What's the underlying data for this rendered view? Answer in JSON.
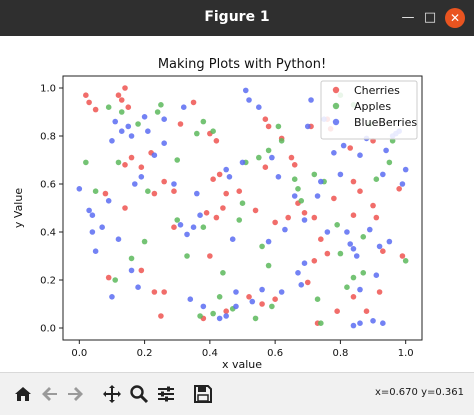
{
  "window": {
    "title": "Figure 1",
    "minimize": "—",
    "maximize": "□",
    "close": "✕"
  },
  "toolbar": {
    "buttons": [
      {
        "name": "home-icon"
      },
      {
        "name": "back-arrow-icon"
      },
      {
        "name": "forward-arrow-icon"
      },
      {
        "name": "pan-icon"
      },
      {
        "name": "zoom-icon"
      },
      {
        "name": "configure-subplots-icon"
      },
      {
        "name": "save-icon"
      }
    ],
    "coords": "x=0.670 y=0.361"
  },
  "chart_data": {
    "type": "scatter",
    "title": "Making Plots with Python!",
    "xlabel": "x value",
    "ylabel": "y Value",
    "xlim": [
      -0.05,
      1.05
    ],
    "ylim": [
      -0.05,
      1.05
    ],
    "xticks": [
      "0.0",
      "0.2",
      "0.4",
      "0.6",
      "0.8",
      "1.0"
    ],
    "yticks": [
      "0.0",
      "0.2",
      "0.4",
      "0.6",
      "0.8",
      "1.0"
    ],
    "legend_position": "top-right",
    "series": [
      {
        "name": "Cherries",
        "color": "#ef5350",
        "points": [
          [
            0.02,
            0.97
          ],
          [
            0.03,
            0.94
          ],
          [
            0.05,
            0.91
          ],
          [
            0.14,
            1.0
          ],
          [
            0.13,
            0.95
          ],
          [
            0.15,
            0.92
          ],
          [
            0.12,
            0.97
          ],
          [
            0.16,
            0.71
          ],
          [
            0.19,
            0.67
          ],
          [
            0.22,
            0.73
          ],
          [
            0.23,
            0.56
          ],
          [
            0.26,
            0.61
          ],
          [
            0.29,
            0.57
          ],
          [
            0.14,
            0.68
          ],
          [
            0.08,
            0.56
          ],
          [
            0.09,
            0.21
          ],
          [
            0.14,
            0.5
          ],
          [
            0.31,
            0.85
          ],
          [
            0.35,
            0.94
          ],
          [
            0.41,
            0.62
          ],
          [
            0.43,
            0.64
          ],
          [
            0.42,
            0.78
          ],
          [
            0.4,
            0.81
          ],
          [
            0.44,
            0.5
          ],
          [
            0.39,
            0.48
          ],
          [
            0.42,
            0.46
          ],
          [
            0.45,
            0.56
          ],
          [
            0.49,
            0.57
          ],
          [
            0.4,
            0.3
          ],
          [
            0.29,
            0.42
          ],
          [
            0.23,
            0.15
          ],
          [
            0.26,
            0.15
          ],
          [
            0.25,
            0.05
          ],
          [
            0.19,
            0.24
          ],
          [
            0.57,
            0.87
          ],
          [
            0.58,
            0.84
          ],
          [
            0.62,
            0.79
          ],
          [
            0.65,
            0.71
          ],
          [
            0.66,
            0.68
          ],
          [
            0.57,
            0.67
          ],
          [
            0.54,
            0.49
          ],
          [
            0.6,
            0.44
          ],
          [
            0.64,
            0.46
          ],
          [
            0.69,
            0.48
          ],
          [
            0.67,
            0.52
          ],
          [
            0.74,
            0.37
          ],
          [
            0.76,
            0.31
          ],
          [
            0.72,
            0.46
          ],
          [
            0.78,
            0.54
          ],
          [
            0.83,
            0.75
          ],
          [
            0.84,
            0.61
          ],
          [
            0.86,
            0.57
          ],
          [
            0.84,
            0.47
          ],
          [
            0.9,
            0.51
          ],
          [
            0.91,
            0.46
          ],
          [
            0.93,
            0.32
          ],
          [
            0.99,
            0.3
          ],
          [
            0.98,
            0.58
          ],
          [
            0.9,
            0.78
          ],
          [
            0.77,
            0.83
          ],
          [
            0.76,
            0.87
          ],
          [
            0.71,
            0.84
          ],
          [
            0.6,
            0.12
          ],
          [
            0.56,
            0.1
          ],
          [
            0.52,
            0.13
          ],
          [
            0.38,
            0.04
          ],
          [
            0.45,
            0.07
          ],
          [
            0.73,
            0.02
          ],
          [
            0.79,
            0.07
          ],
          [
            0.84,
            0.13
          ],
          [
            0.88,
            0.07
          ],
          [
            0.92,
            0.15
          ],
          [
            0.7,
            0.19
          ],
          [
            0.72,
            0.28
          ]
        ]
      },
      {
        "name": "Apples",
        "color": "#5cb85c",
        "points": [
          [
            0.02,
            0.69
          ],
          [
            0.05,
            0.57
          ],
          [
            0.09,
            0.92
          ],
          [
            0.12,
            0.69
          ],
          [
            0.13,
            0.9
          ],
          [
            0.18,
            0.85
          ],
          [
            0.21,
            0.57
          ],
          [
            0.24,
            0.9
          ],
          [
            0.25,
            0.93
          ],
          [
            0.2,
            0.36
          ],
          [
            0.16,
            0.29
          ],
          [
            0.11,
            0.2
          ],
          [
            0.3,
            0.45
          ],
          [
            0.33,
            0.3
          ],
          [
            0.3,
            0.7
          ],
          [
            0.36,
            0.81
          ],
          [
            0.38,
            0.86
          ],
          [
            0.41,
            0.82
          ],
          [
            0.38,
            0.42
          ],
          [
            0.44,
            0.23
          ],
          [
            0.43,
            0.13
          ],
          [
            0.37,
            0.05
          ],
          [
            0.41,
            0.06
          ],
          [
            0.47,
            0.08
          ],
          [
            0.49,
            0.45
          ],
          [
            0.5,
            0.52
          ],
          [
            0.51,
            0.69
          ],
          [
            0.55,
            0.71
          ],
          [
            0.58,
            0.74
          ],
          [
            0.61,
            0.84
          ],
          [
            0.62,
            0.78
          ],
          [
            0.56,
            0.34
          ],
          [
            0.58,
            0.26
          ],
          [
            0.59,
            0.09
          ],
          [
            0.54,
            0.04
          ],
          [
            0.66,
            0.62
          ],
          [
            0.67,
            0.58
          ],
          [
            0.68,
            0.53
          ],
          [
            0.72,
            0.64
          ],
          [
            0.75,
            0.61
          ],
          [
            0.79,
            0.43
          ],
          [
            0.8,
            0.31
          ],
          [
            0.82,
            0.17
          ],
          [
            0.84,
            0.21
          ],
          [
            0.87,
            0.23
          ],
          [
            0.87,
            0.38
          ],
          [
            0.91,
            0.62
          ],
          [
            0.95,
            0.69
          ],
          [
            0.96,
            0.78
          ],
          [
            1.0,
            0.28
          ],
          [
            0.73,
            0.12
          ],
          [
            0.74,
            0.02
          ],
          [
            0.8,
            0.97
          ],
          [
            0.84,
            0.93
          ],
          [
            0.89,
            0.85
          ]
        ]
      },
      {
        "name": "BlueBerries",
        "color": "#5b6cf2",
        "points": [
          [
            0.0,
            0.58
          ],
          [
            0.03,
            0.49
          ],
          [
            0.04,
            0.47
          ],
          [
            0.04,
            0.4
          ],
          [
            0.05,
            0.32
          ],
          [
            0.07,
            0.42
          ],
          [
            0.09,
            0.53
          ],
          [
            0.1,
            0.13
          ],
          [
            0.12,
            0.37
          ],
          [
            0.1,
            0.78
          ],
          [
            0.13,
            0.82
          ],
          [
            0.15,
            0.84
          ],
          [
            0.16,
            0.8
          ],
          [
            0.11,
            0.86
          ],
          [
            0.17,
            0.6
          ],
          [
            0.19,
            0.63
          ],
          [
            0.21,
            0.82
          ],
          [
            0.16,
            0.24
          ],
          [
            0.18,
            0.17
          ],
          [
            0.23,
            0.72
          ],
          [
            0.26,
            0.77
          ],
          [
            0.29,
            0.6
          ],
          [
            0.31,
            0.43
          ],
          [
            0.33,
            0.39
          ],
          [
            0.35,
            0.42
          ],
          [
            0.36,
            0.56
          ],
          [
            0.37,
            0.47
          ],
          [
            0.34,
            0.12
          ],
          [
            0.38,
            0.09
          ],
          [
            0.45,
            0.66
          ],
          [
            0.46,
            0.63
          ],
          [
            0.47,
            0.37
          ],
          [
            0.43,
            0.04
          ],
          [
            0.45,
            0.05
          ],
          [
            0.48,
            0.09
          ],
          [
            0.5,
            0.69
          ],
          [
            0.51,
            0.99
          ],
          [
            0.52,
            0.95
          ],
          [
            0.55,
            0.92
          ],
          [
            0.56,
            0.16
          ],
          [
            0.58,
            0.36
          ],
          [
            0.59,
            0.71
          ],
          [
            0.61,
            0.63
          ],
          [
            0.62,
            0.15
          ],
          [
            0.63,
            0.41
          ],
          [
            0.66,
            0.55
          ],
          [
            0.67,
            0.23
          ],
          [
            0.68,
            0.18
          ],
          [
            0.69,
            0.27
          ],
          [
            0.69,
            0.45
          ],
          [
            0.7,
            0.84
          ],
          [
            0.71,
            0.95
          ],
          [
            0.73,
            0.55
          ],
          [
            0.74,
            0.61
          ],
          [
            0.75,
            0.87
          ],
          [
            0.76,
            0.4
          ],
          [
            0.78,
            0.73
          ],
          [
            0.8,
            0.64
          ],
          [
            0.81,
            0.76
          ],
          [
            0.82,
            0.4
          ],
          [
            0.83,
            0.35
          ],
          [
            0.84,
            0.33
          ],
          [
            0.85,
            0.3
          ],
          [
            0.86,
            0.16
          ],
          [
            0.86,
            0.72
          ],
          [
            0.88,
            0.79
          ],
          [
            0.89,
            0.41
          ],
          [
            0.91,
            0.22
          ],
          [
            0.92,
            0.34
          ],
          [
            0.93,
            0.64
          ],
          [
            0.94,
            0.74
          ],
          [
            0.96,
            0.8
          ],
          [
            0.97,
            0.81
          ],
          [
            0.98,
            0.82
          ],
          [
            0.99,
            0.6
          ],
          [
            1.0,
            0.66
          ],
          [
            0.84,
            0.01
          ],
          [
            0.86,
            0.02
          ],
          [
            0.9,
            0.03
          ],
          [
            0.93,
            0.02
          ],
          [
            0.95,
            0.36
          ],
          [
            0.2,
            0.88
          ],
          [
            0.32,
            0.92
          ],
          [
            0.26,
            0.87
          ],
          [
            0.53,
            0.11
          ],
          [
            0.48,
            0.15
          ]
        ]
      }
    ]
  }
}
